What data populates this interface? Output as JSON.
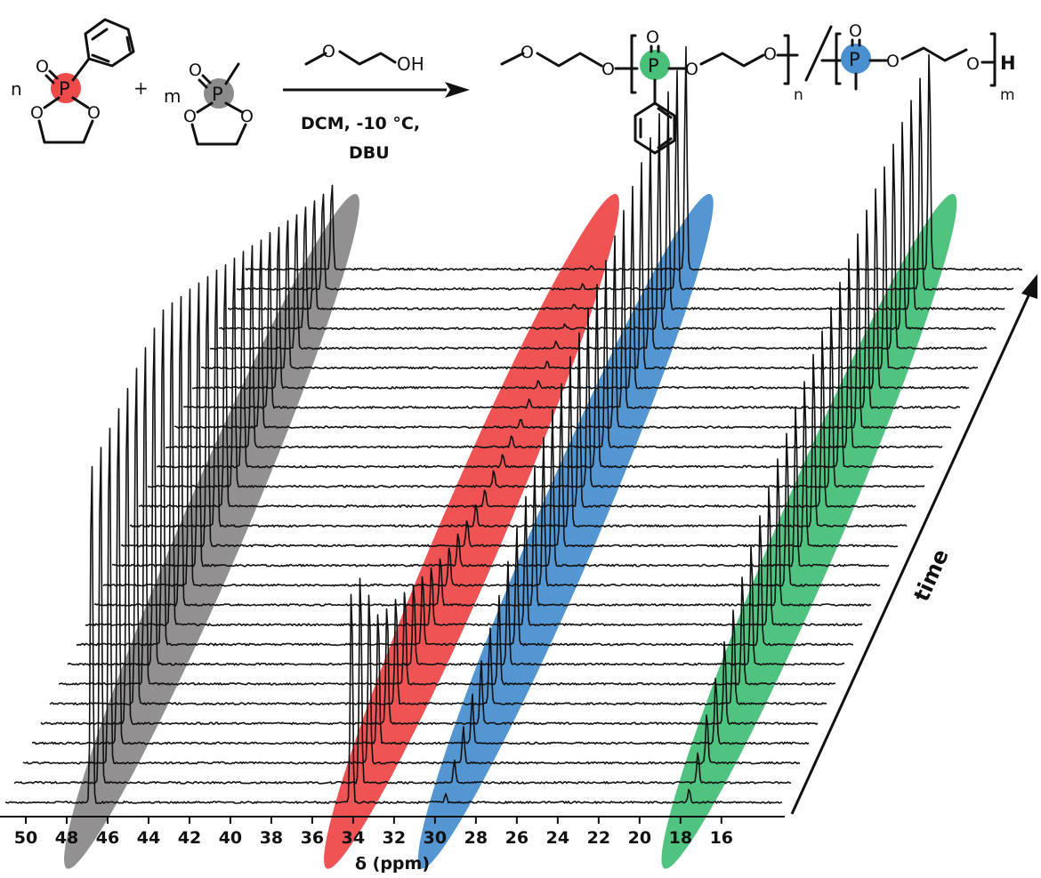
{
  "scheme": {
    "monomer1_coefficient": "n",
    "monomer2_coefficient": "m",
    "plus": "+",
    "phosphorus_symbol": "P",
    "oxygen_symbol": "O",
    "reagent": "OH",
    "conditions_line1": "DCM, -10 °C,",
    "conditions_line2": "DBU",
    "product_end_group": "H",
    "product_subscript_1": "n",
    "product_subscript_2": "m",
    "colors": {
      "monomer1_highlight": "#ef4a4a",
      "monomer2_highlight": "#8c8a8a",
      "product_unit1_highlight": "#48c07a",
      "product_unit2_highlight": "#4a90d0"
    }
  },
  "chart_data": {
    "type": "line",
    "subtype": "stacked_waterfall_nmr",
    "xlabel": "δ (ppm)",
    "depth_label": "time",
    "x_range": [
      51,
      14.5
    ],
    "x_ticks": [
      50,
      48,
      46,
      44,
      42,
      40,
      38,
      36,
      34,
      32,
      30,
      28,
      26,
      24,
      22,
      20,
      18,
      16
    ],
    "n_spectra": 28,
    "series": [
      {
        "color": "#8c8a8a",
        "shift_ppm": 47.0,
        "peak_heights": [
          1.0,
          1.0,
          1.0,
          1.0,
          1.0,
          1.0,
          1.0,
          1.0,
          1.0,
          0.96,
          0.92,
          0.88,
          0.84,
          0.8,
          0.76,
          0.72,
          0.68,
          0.64,
          0.6,
          0.56,
          0.52,
          0.48,
          0.44,
          0.4,
          0.36,
          0.32,
          0.28,
          0.25
        ]
      },
      {
        "color": "#ef4a4a",
        "shift_ppm": 34.3,
        "peak_heights": [
          1.0,
          0.98,
          0.8,
          0.62,
          0.55,
          0.5,
          0.44,
          0.38,
          0.32,
          0.27,
          0.22,
          0.18,
          0.15,
          0.12,
          0.1,
          0.08,
          0.07,
          0.06,
          0.05,
          0.04,
          0.04,
          0.03,
          0.03,
          0.03,
          0.02,
          0.02,
          0.02,
          0.02
        ]
      },
      {
        "color": "#4a90d0",
        "shift_ppm": 29.7,
        "peak_heights": [
          0.04,
          0.1,
          0.16,
          0.22,
          0.28,
          0.34,
          0.4,
          0.46,
          0.52,
          0.57,
          0.62,
          0.66,
          0.7,
          0.73,
          0.76,
          0.78,
          0.8,
          0.82,
          0.84,
          0.86,
          0.88,
          0.9,
          0.92,
          0.94,
          0.96,
          0.97,
          0.98,
          1.0
        ]
      },
      {
        "color": "#48c07a",
        "shift_ppm": 17.8,
        "peak_heights": [
          0.06,
          0.14,
          0.22,
          0.3,
          0.38,
          0.44,
          0.5,
          0.55,
          0.6,
          0.64,
          0.68,
          0.71,
          0.74,
          0.77,
          0.8,
          0.82,
          0.84,
          0.86,
          0.88,
          0.9,
          0.92,
          0.93,
          0.94,
          0.95,
          0.96,
          0.97,
          0.98,
          1.0
        ]
      }
    ]
  }
}
